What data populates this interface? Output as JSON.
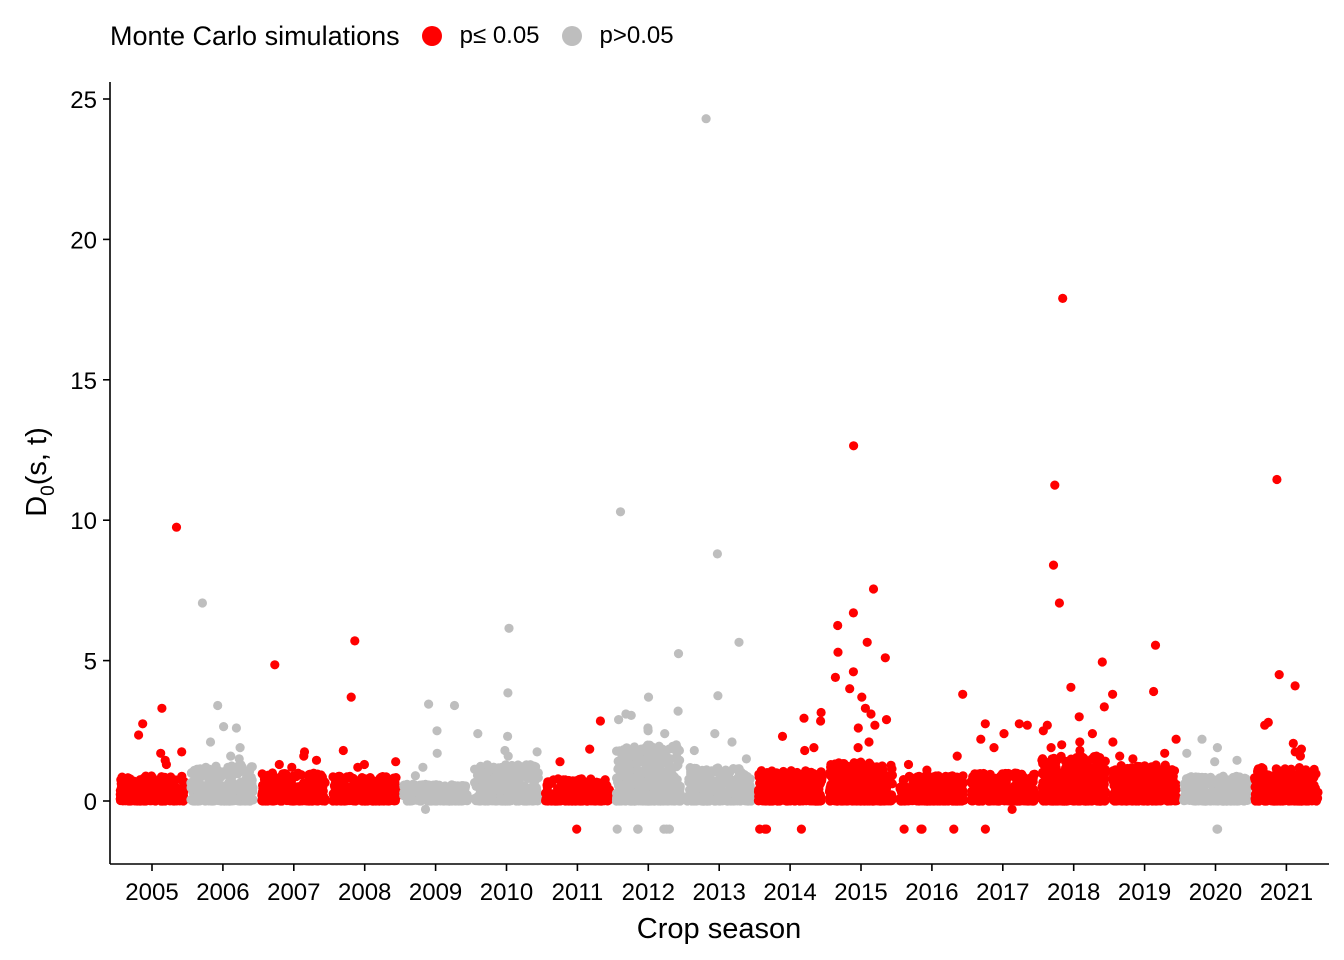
{
  "chart_data": {
    "type": "scatter",
    "title": "",
    "xlabel": "Crop season",
    "ylabel": "D0(s, t)",
    "ylabel_main": "D",
    "ylabel_sub": "0",
    "ylabel_rest": "(s, t)",
    "ylim": [
      -2.3,
      25.7
    ],
    "yticks": [
      0,
      5,
      10,
      15,
      20,
      25
    ],
    "categories": [
      "2005",
      "2006",
      "2007",
      "2008",
      "2009",
      "2010",
      "2011",
      "2012",
      "2013",
      "2014",
      "2015",
      "2016",
      "2017",
      "2018",
      "2019",
      "2020",
      "2021"
    ],
    "legend": {
      "title": "Monte Carlo simulations",
      "position": "top-left",
      "entries": [
        {
          "label": "p≤ 0.05",
          "color": "#ff0000"
        },
        {
          "label": "p>0.05",
          "color": "#bebebe"
        }
      ]
    },
    "grid": false,
    "seasons": [
      {
        "season": "2005",
        "significant": true,
        "dense_max": 0.9,
        "n": 300,
        "outliers": [
          9.75,
          3.3,
          2.75,
          2.35,
          1.75,
          1.7,
          1.45,
          1.3
        ]
      },
      {
        "season": "2006",
        "significant": false,
        "dense_max": 1.3,
        "n": 300,
        "outliers": [
          7.05,
          3.4,
          2.65,
          2.6,
          2.1,
          1.9,
          1.6,
          1.5
        ]
      },
      {
        "season": "2007",
        "significant": true,
        "dense_max": 1.0,
        "n": 300,
        "outliers": [
          4.85,
          1.75,
          1.6,
          1.45,
          1.3,
          1.2
        ]
      },
      {
        "season": "2008",
        "significant": true,
        "dense_max": 0.9,
        "n": 280,
        "outliers": [
          5.7,
          3.7,
          1.8,
          1.4,
          1.3,
          1.2
        ]
      },
      {
        "season": "2009",
        "significant": false,
        "dense_max": 0.6,
        "n": 280,
        "outliers": [
          3.45,
          3.4,
          2.5,
          1.7,
          1.2,
          0.9,
          -0.3
        ]
      },
      {
        "season": "2010",
        "significant": false,
        "dense_max": 1.3,
        "n": 320,
        "outliers": [
          6.15,
          3.85,
          2.4,
          2.3,
          1.8,
          1.75,
          1.6
        ]
      },
      {
        "season": "2011",
        "significant": true,
        "dense_max": 0.8,
        "n": 260,
        "outliers": [
          2.85,
          1.85,
          1.4,
          -1.0
        ]
      },
      {
        "season": "2012",
        "significant": false,
        "dense_max": 2.0,
        "n": 500,
        "outliers": [
          10.3,
          5.25,
          3.7,
          3.2,
          3.1,
          3.05,
          2.9,
          2.6,
          2.5,
          2.4,
          -1.0,
          -1.0,
          -1.0,
          -1.0,
          -1.0,
          -1.0
        ]
      },
      {
        "season": "2013",
        "significant": false,
        "dense_max": 1.2,
        "n": 300,
        "outliers": [
          24.3,
          8.8,
          5.65,
          3.75,
          2.4,
          2.1,
          1.8,
          1.5
        ]
      },
      {
        "season": "2014",
        "significant": true,
        "dense_max": 1.1,
        "n": 350,
        "outliers": [
          3.15,
          2.95,
          2.85,
          2.3,
          1.9,
          1.8,
          -1.0,
          -1.0,
          -1.0,
          -1.0
        ]
      },
      {
        "season": "2015",
        "significant": true,
        "dense_max": 1.4,
        "n": 450,
        "outliers": [
          12.65,
          7.55,
          6.7,
          6.25,
          5.65,
          5.3,
          5.1,
          4.6,
          4.4,
          4.0,
          3.7,
          3.3,
          3.1,
          2.9,
          2.7,
          2.6,
          2.1,
          1.9
        ]
      },
      {
        "season": "2016",
        "significant": true,
        "dense_max": 0.9,
        "n": 320,
        "outliers": [
          3.8,
          1.6,
          1.3,
          1.1,
          -1.0,
          -1.0,
          -1.0,
          -1.0
        ]
      },
      {
        "season": "2017",
        "significant": true,
        "dense_max": 1.0,
        "n": 320,
        "outliers": [
          2.75,
          2.75,
          2.7,
          2.4,
          2.2,
          1.9,
          -0.3,
          -1.0
        ]
      },
      {
        "season": "2018",
        "significant": true,
        "dense_max": 1.6,
        "n": 450,
        "outliers": [
          17.9,
          11.25,
          8.4,
          7.05,
          4.95,
          4.05,
          3.35,
          3.0,
          2.7,
          2.5,
          2.4,
          2.1,
          2.0,
          1.9,
          1.8
        ]
      },
      {
        "season": "2019",
        "significant": true,
        "dense_max": 1.3,
        "n": 380,
        "outliers": [
          5.55,
          3.9,
          3.8,
          2.2,
          2.1,
          1.7,
          1.6,
          1.5
        ]
      },
      {
        "season": "2020",
        "significant": false,
        "dense_max": 0.9,
        "n": 300,
        "outliers": [
          2.2,
          1.9,
          1.7,
          1.45,
          1.4,
          -1.0,
          -1.0
        ]
      },
      {
        "season": "2021",
        "significant": true,
        "dense_max": 1.2,
        "n": 350,
        "outliers": [
          11.45,
          4.5,
          4.1,
          2.8,
          2.7,
          2.05,
          1.85,
          1.75,
          1.6
        ]
      }
    ]
  }
}
